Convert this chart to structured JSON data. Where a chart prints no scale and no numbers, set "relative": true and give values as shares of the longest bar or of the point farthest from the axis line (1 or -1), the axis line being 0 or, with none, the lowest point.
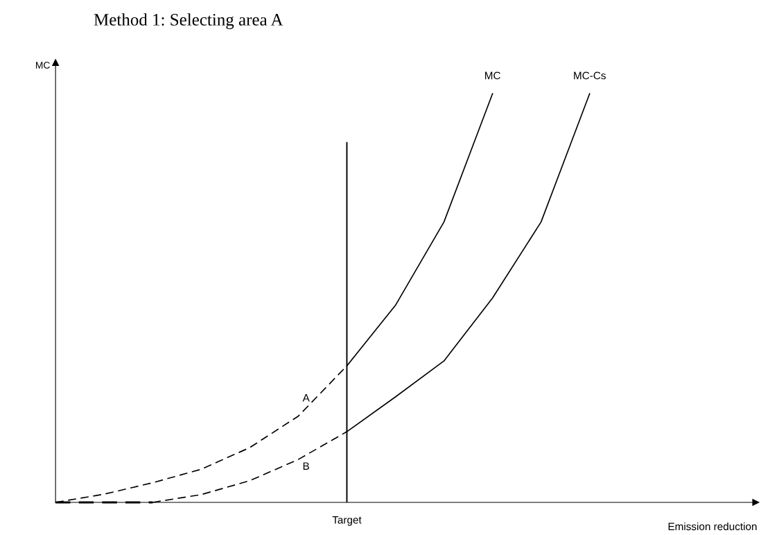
{
  "chart_data": {
    "type": "line",
    "relative": true,
    "title": "Method 1: Selecting area A",
    "xlabel": "Emission reduction",
    "ylabel": "MC",
    "categories": [
      null,
      null,
      null,
      null,
      null,
      null,
      null,
      null,
      null,
      null,
      null,
      null,
      null,
      null,
      null
    ],
    "series": [
      {
        "color": "#000000",
        "line_style": "dashed",
        "values": [
          0,
          0.02,
          0.048,
          0.081,
          0.134,
          0.211,
          0.334,
          null,
          null,
          null,
          null,
          null,
          null,
          null,
          null
        ]
      },
      {
        "name": "MC",
        "color": "#000000",
        "line_style": "solid",
        "values": [
          null,
          null,
          null,
          null,
          null,
          null,
          0.334,
          0.482,
          0.686,
          1.0,
          null,
          null,
          null,
          null,
          null
        ]
      },
      {
        "color": "#000000",
        "line_style": "dashed",
        "values": [
          0,
          0,
          0,
          null,
          null,
          null,
          null,
          null,
          null,
          null,
          null,
          null,
          null,
          null,
          null
        ]
      },
      {
        "color": "#000000",
        "line_style": "dashed",
        "values": [
          null,
          null,
          0,
          0.019,
          0.053,
          0.105,
          0.173,
          null,
          null,
          null,
          null,
          null,
          null,
          null,
          null
        ]
      },
      {
        "name": "MC-Cs",
        "color": "#000000",
        "line_style": "solid",
        "values": [
          null,
          null,
          null,
          null,
          null,
          null,
          0.173,
          0.258,
          0.346,
          0.5,
          0.686,
          1.0,
          null,
          null,
          null
        ]
      }
    ],
    "annotations": [
      "Target",
      "A",
      "B"
    ]
  }
}
